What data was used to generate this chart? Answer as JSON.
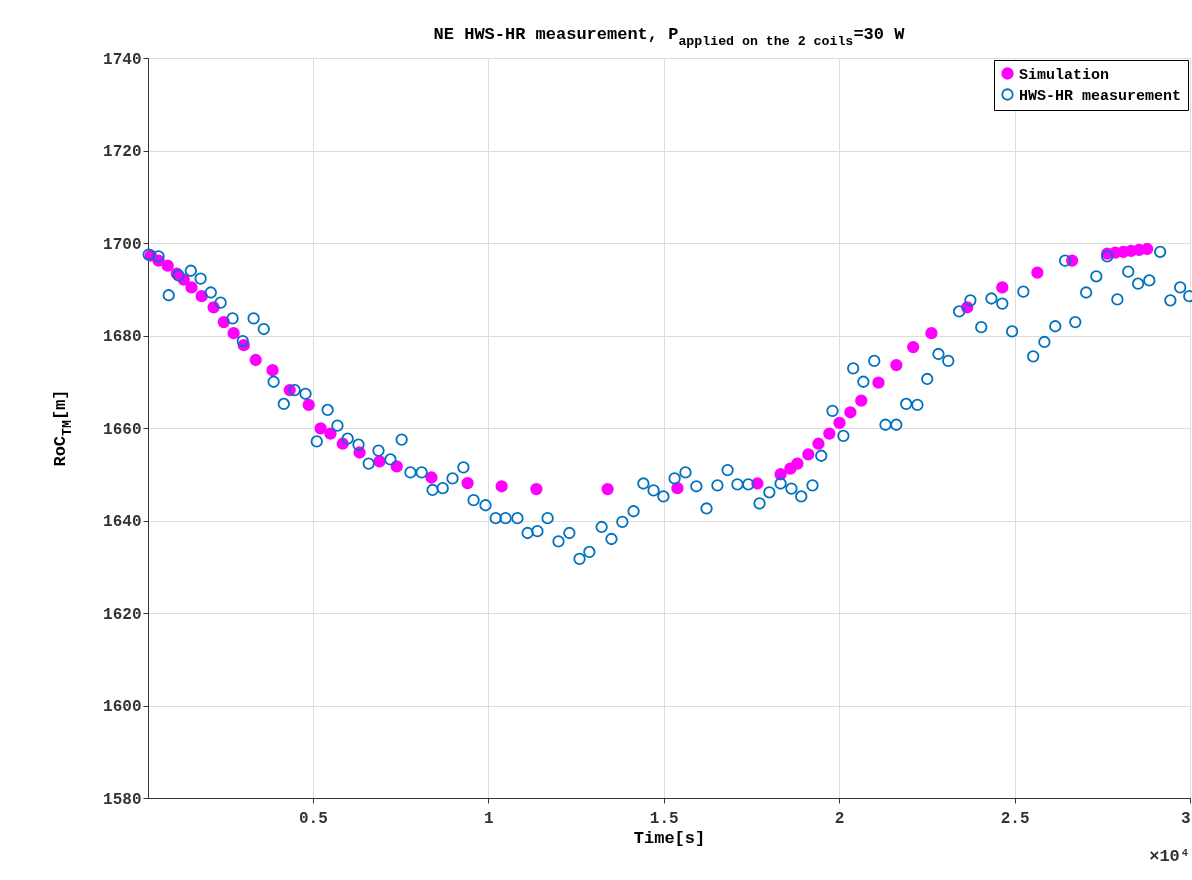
{
  "chart_data": {
    "type": "scatter",
    "title": "NE HWS-HR measurement, P$_{applied on the 2 coils}$=30 W",
    "xlabel": "Time[s]",
    "ylabel": "RoC$_{TM}$[m]",
    "annotations": [
      "×10⁴"
    ],
    "xlim": [
      0.03,
      3
    ],
    "ylim": [
      1580,
      1740
    ],
    "xticks": [
      0.5,
      1,
      1.5,
      2,
      2.5,
      3
    ],
    "yticks": [
      1580,
      1600,
      1620,
      1640,
      1660,
      1680,
      1700,
      1720,
      1740
    ],
    "grid": true,
    "legend": "top right",
    "marker": "circle",
    "series": [
      {
        "name": "Simulation",
        "color": "#ff00ff",
        "x": [
          0.038,
          0.06,
          0.086,
          0.112,
          0.132,
          0.154,
          0.183,
          0.217,
          0.246,
          0.274,
          0.303,
          0.337,
          0.385,
          0.434,
          0.488,
          0.522,
          0.55,
          0.585,
          0.633,
          0.69,
          0.739,
          0.838,
          0.941,
          1.038,
          1.137,
          1.34,
          1.539,
          1.767,
          1.833,
          1.861,
          1.881,
          1.912,
          1.941,
          1.972,
          2.001,
          2.032,
          2.063,
          2.112,
          2.163,
          2.211,
          2.263,
          2.365,
          2.465,
          2.565,
          2.664,
          2.764,
          2.787,
          2.81,
          2.832,
          2.855,
          2.878
        ],
        "values": [
          1697.3,
          1696.2,
          1695.1,
          1693.4,
          1692.1,
          1690.4,
          1688.5,
          1686.1,
          1682.9,
          1680.5,
          1677.9,
          1674.7,
          1672.5,
          1668.2,
          1665.0,
          1659.9,
          1658.8,
          1656.6,
          1654.7,
          1652.8,
          1651.7,
          1649.3,
          1648.1,
          1647.4,
          1646.8,
          1646.8,
          1647.0,
          1648.0,
          1650.0,
          1651.2,
          1652.3,
          1654.3,
          1656.6,
          1658.8,
          1661.1,
          1663.4,
          1665.9,
          1669.8,
          1673.6,
          1677.5,
          1680.5,
          1686.1,
          1690.4,
          1693.6,
          1696.2,
          1697.7,
          1697.9,
          1698.1,
          1698.3,
          1698.5,
          1698.7
        ]
      },
      {
        "name": "HWS-HR measurement",
        "color": "#0072bd",
        "x": [
          0.032,
          0.06,
          0.089,
          0.117,
          0.152,
          0.18,
          0.209,
          0.237,
          0.271,
          0.3,
          0.331,
          0.36,
          0.388,
          0.417,
          0.448,
          0.479,
          0.511,
          0.542,
          0.57,
          0.599,
          0.63,
          0.659,
          0.687,
          0.721,
          0.753,
          0.778,
          0.81,
          0.841,
          0.87,
          0.898,
          0.929,
          0.958,
          0.992,
          1.021,
          1.049,
          1.083,
          1.112,
          1.14,
          1.169,
          1.2,
          1.231,
          1.26,
          1.288,
          1.323,
          1.351,
          1.382,
          1.414,
          1.442,
          1.471,
          1.499,
          1.531,
          1.562,
          1.593,
          1.622,
          1.653,
          1.682,
          1.71,
          1.741,
          1.773,
          1.801,
          1.833,
          1.864,
          1.892,
          1.924,
          1.949,
          1.981,
          2.012,
          2.04,
          2.069,
          2.1,
          2.132,
          2.163,
          2.191,
          2.223,
          2.251,
          2.283,
          2.311,
          2.342,
          2.374,
          2.405,
          2.434,
          2.465,
          2.493,
          2.525,
          2.553,
          2.585,
          2.616,
          2.644,
          2.673,
          2.704,
          2.733,
          2.764,
          2.793,
          2.824,
          2.852,
          2.884,
          2.915,
          2.944,
          2.972,
          2.998
        ],
        "values": [
          1697.5,
          1697.1,
          1688.7,
          1693.0,
          1694.0,
          1692.3,
          1689.3,
          1687.1,
          1683.7,
          1678.8,
          1683.7,
          1681.4,
          1670.0,
          1665.2,
          1668.2,
          1667.4,
          1657.1,
          1663.9,
          1660.5,
          1657.7,
          1656.4,
          1652.3,
          1655.1,
          1653.2,
          1657.5,
          1650.4,
          1650.4,
          1646.6,
          1647.0,
          1649.1,
          1651.5,
          1644.4,
          1643.3,
          1640.5,
          1640.5,
          1640.5,
          1637.3,
          1637.7,
          1640.5,
          1635.5,
          1637.3,
          1631.7,
          1633.2,
          1638.6,
          1636.0,
          1639.7,
          1642.0,
          1648.0,
          1646.5,
          1645.2,
          1649.1,
          1650.4,
          1647.4,
          1642.6,
          1647.6,
          1650.9,
          1647.8,
          1647.8,
          1643.7,
          1646.1,
          1648.0,
          1646.9,
          1645.2,
          1647.6,
          1654.0,
          1663.7,
          1658.3,
          1672.9,
          1670.0,
          1674.5,
          1660.7,
          1660.7,
          1665.2,
          1665.0,
          1670.6,
          1676.0,
          1674.5,
          1685.2,
          1687.6,
          1681.8,
          1688.0,
          1686.9,
          1680.9,
          1689.5,
          1675.5,
          1678.6,
          1682.0,
          1696.2,
          1682.9,
          1689.3,
          1692.8,
          1697.1,
          1687.8,
          1693.8,
          1691.2,
          1691.9,
          1698.1,
          1687.6,
          1690.4,
          1688.5
        ]
      }
    ]
  }
}
